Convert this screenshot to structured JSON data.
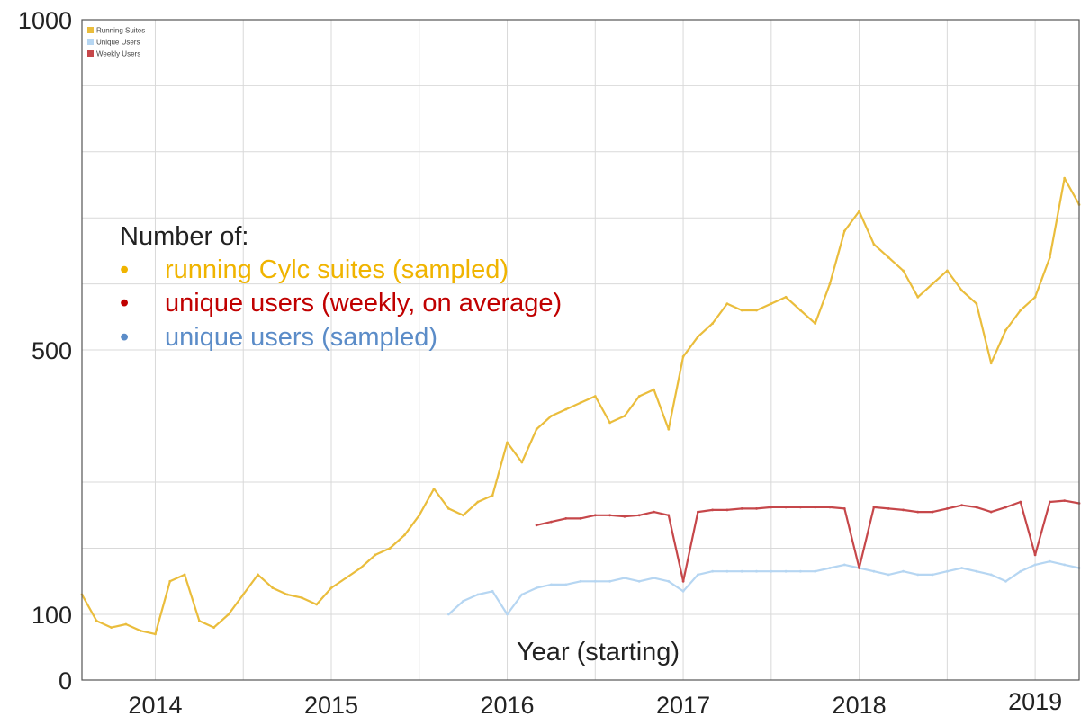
{
  "chart_data": {
    "type": "line",
    "xlabel": "Year (starting)",
    "x_ticks": [
      "2014",
      "2015",
      "2016",
      "2017",
      "2018",
      "2019"
    ],
    "y_ticks": [
      "0",
      "100",
      "500",
      "1000"
    ],
    "ylim": [
      0,
      1000
    ],
    "xlim": [
      "2013-08",
      "2019-04"
    ],
    "grid": true,
    "legend": {
      "placement": "top-left",
      "entries": [
        "Running Suites",
        "Unique Users",
        "Weekly Users"
      ]
    },
    "annotation": {
      "heading": "Number of:",
      "bullet": "•",
      "lines": [
        {
          "text": "running Cylc suites (sampled)",
          "color": "#f0b400"
        },
        {
          "text": "unique users (weekly, on average)",
          "color": "#c00000"
        },
        {
          "text": "unique users (sampled)",
          "color": "#5b8cc8"
        }
      ]
    },
    "series": [
      {
        "name": "Running Suites",
        "color": "#eabd3c",
        "x": [
          "2013-08",
          "2013-09",
          "2013-10",
          "2013-11",
          "2013-12",
          "2014-01",
          "2014-02",
          "2014-03",
          "2014-04",
          "2014-05",
          "2014-06",
          "2014-07",
          "2014-08",
          "2014-09",
          "2014-10",
          "2014-11",
          "2014-12",
          "2015-01",
          "2015-02",
          "2015-03",
          "2015-04",
          "2015-05",
          "2015-06",
          "2015-07",
          "2015-08",
          "2015-09",
          "2015-10",
          "2015-11",
          "2015-12",
          "2016-01",
          "2016-02",
          "2016-03",
          "2016-04",
          "2016-05",
          "2016-06",
          "2016-07",
          "2016-08",
          "2016-09",
          "2016-10",
          "2016-11",
          "2016-12",
          "2017-01",
          "2017-02",
          "2017-03",
          "2017-04",
          "2017-05",
          "2017-06",
          "2017-07",
          "2017-08",
          "2017-09",
          "2017-10",
          "2017-11",
          "2017-12",
          "2018-01",
          "2018-02",
          "2018-03",
          "2018-04",
          "2018-05",
          "2018-06",
          "2018-07",
          "2018-08",
          "2018-09",
          "2018-10",
          "2018-11",
          "2018-12",
          "2019-01",
          "2019-02",
          "2019-03",
          "2019-04"
        ],
        "values": [
          130,
          90,
          80,
          85,
          75,
          70,
          150,
          160,
          90,
          80,
          100,
          130,
          160,
          140,
          130,
          125,
          115,
          140,
          155,
          170,
          190,
          200,
          220,
          250,
          290,
          260,
          250,
          270,
          280,
          360,
          330,
          380,
          400,
          410,
          420,
          430,
          390,
          400,
          430,
          440,
          380,
          490,
          520,
          540,
          570,
          560,
          560,
          570,
          580,
          560,
          540,
          600,
          680,
          710,
          660,
          640,
          620,
          580,
          600,
          620,
          590,
          570,
          480,
          530,
          560,
          580,
          640,
          760,
          720
        ]
      },
      {
        "name": "Unique Users",
        "color": "#b6d6f2",
        "x": [
          "2015-09",
          "2015-10",
          "2015-11",
          "2015-12",
          "2016-01",
          "2016-02",
          "2016-03",
          "2016-04",
          "2016-05",
          "2016-06",
          "2016-07",
          "2016-08",
          "2016-09",
          "2016-10",
          "2016-11",
          "2016-12",
          "2017-01",
          "2017-02",
          "2017-03",
          "2017-04",
          "2017-05",
          "2017-06",
          "2017-07",
          "2017-08",
          "2017-09",
          "2017-10",
          "2017-11",
          "2017-12",
          "2018-01",
          "2018-02",
          "2018-03",
          "2018-04",
          "2018-05",
          "2018-06",
          "2018-07",
          "2018-08",
          "2018-09",
          "2018-10",
          "2018-11",
          "2018-12",
          "2019-01",
          "2019-02",
          "2019-03",
          "2019-04"
        ],
        "values": [
          100,
          120,
          130,
          135,
          100,
          130,
          140,
          145,
          145,
          150,
          150,
          150,
          155,
          150,
          155,
          150,
          135,
          160,
          165,
          165,
          165,
          165,
          165,
          165,
          165,
          165,
          170,
          175,
          170,
          165,
          160,
          165,
          160,
          160,
          165,
          170,
          165,
          160,
          150,
          165,
          175,
          180,
          175,
          170
        ]
      },
      {
        "name": "Weekly Users",
        "color": "#c6474a",
        "x": [
          "2016-03",
          "2016-04",
          "2016-05",
          "2016-06",
          "2016-07",
          "2016-08",
          "2016-09",
          "2016-10",
          "2016-11",
          "2016-12",
          "2017-01",
          "2017-02",
          "2017-03",
          "2017-04",
          "2017-05",
          "2017-06",
          "2017-07",
          "2017-08",
          "2017-09",
          "2017-10",
          "2017-11",
          "2017-12",
          "2018-01",
          "2018-02",
          "2018-03",
          "2018-04",
          "2018-05",
          "2018-06",
          "2018-07",
          "2018-08",
          "2018-09",
          "2018-10",
          "2018-11",
          "2018-12",
          "2019-01",
          "2019-02",
          "2019-03",
          "2019-04"
        ],
        "values": [
          235,
          240,
          245,
          245,
          250,
          250,
          248,
          250,
          255,
          250,
          150,
          255,
          258,
          258,
          260,
          260,
          262,
          262,
          262,
          262,
          262,
          260,
          170,
          262,
          260,
          258,
          255,
          255,
          260,
          265,
          262,
          255,
          262,
          270,
          190,
          270,
          272,
          268
        ]
      }
    ]
  }
}
